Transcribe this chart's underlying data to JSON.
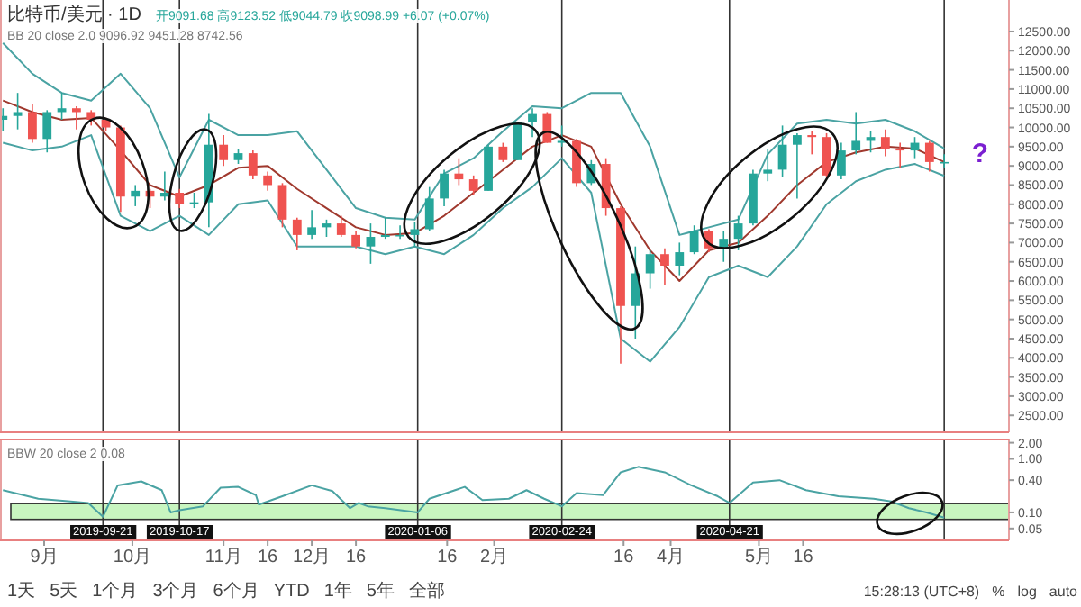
{
  "chart_data": [
    {
      "type": "candlestick",
      "title": "比特币/美元 · 1D",
      "x": [
        "2019-08-18",
        "2019-08-23",
        "2019-08-28",
        "2019-09-02",
        "2019-09-07",
        "2019-09-12",
        "2019-09-17",
        "2019-09-22",
        "2019-09-27",
        "2019-10-02",
        "2019-10-07",
        "2019-10-12",
        "2019-10-17",
        "2019-10-22",
        "2019-10-27",
        "2019-11-01",
        "2019-11-06",
        "2019-11-11",
        "2019-11-16",
        "2019-11-21",
        "2019-11-26",
        "2019-12-01",
        "2019-12-06",
        "2019-12-11",
        "2019-12-16",
        "2019-12-21",
        "2019-12-26",
        "2019-12-31",
        "2020-01-05",
        "2020-01-10",
        "2020-01-15",
        "2020-01-20",
        "2020-01-25",
        "2020-01-30",
        "2020-02-04",
        "2020-02-09",
        "2020-02-14",
        "2020-02-19",
        "2020-02-24",
        "2020-02-29",
        "2020-03-05",
        "2020-03-10",
        "2020-03-15",
        "2020-03-20",
        "2020-03-25",
        "2020-03-30",
        "2020-04-04",
        "2020-04-09",
        "2020-04-14",
        "2020-04-19",
        "2020-04-24",
        "2020-04-29",
        "2020-05-04",
        "2020-05-09",
        "2020-05-14",
        "2020-05-19",
        "2020-05-24",
        "2020-05-29",
        "2020-06-03",
        "2020-06-08",
        "2020-06-13",
        "2020-06-18",
        "2020-06-23",
        "2020-06-28",
        "2020-07-03"
      ],
      "ohlc": [
        [
          10200,
          10500,
          9900,
          10300
        ],
        [
          10300,
          10900,
          9950,
          10400
        ],
        [
          10400,
          10600,
          9600,
          9700
        ],
        [
          9700,
          10450,
          9350,
          10400
        ],
        [
          10400,
          10900,
          10200,
          10500
        ],
        [
          10500,
          10550,
          9950,
          10400
        ],
        [
          10400,
          10450,
          10050,
          10200
        ],
        [
          10200,
          10250,
          9900,
          10000
        ],
        [
          10000,
          10050,
          7800,
          8200
        ],
        [
          8200,
          8500,
          7950,
          8350
        ],
        [
          8350,
          8400,
          7900,
          8200
        ],
        [
          8200,
          8850,
          8100,
          8300
        ],
        [
          8300,
          8400,
          7900,
          8000
        ],
        [
          8000,
          8300,
          7900,
          8050
        ],
        [
          8050,
          10350,
          7400,
          9550
        ],
        [
          9550,
          9800,
          9000,
          9150
        ],
        [
          9150,
          9450,
          9050,
          9330
        ],
        [
          9330,
          9400,
          8650,
          8750
        ],
        [
          8750,
          8850,
          8350,
          8500
        ],
        [
          8500,
          8550,
          7400,
          7600
        ],
        [
          7600,
          7650,
          6800,
          7200
        ],
        [
          7200,
          7850,
          7100,
          7400
        ],
        [
          7400,
          7600,
          7150,
          7500
        ],
        [
          7500,
          7700,
          7150,
          7200
        ],
        [
          7200,
          7300,
          6850,
          6900
        ],
        [
          6900,
          7500,
          6450,
          7150
        ],
        [
          7150,
          7650,
          7100,
          7200
        ],
        [
          7200,
          7450,
          7100,
          7200
        ],
        [
          7200,
          7550,
          6900,
          7350
        ],
        [
          7350,
          8450,
          7300,
          8150
        ],
        [
          8150,
          8900,
          7950,
          8800
        ],
        [
          8800,
          9200,
          8500,
          8650
        ],
        [
          8650,
          8750,
          8250,
          8350
        ],
        [
          8350,
          9550,
          8350,
          9500
        ],
        [
          9500,
          9600,
          9100,
          9150
        ],
        [
          9150,
          10150,
          9150,
          10150
        ],
        [
          10150,
          10500,
          9750,
          10350
        ],
        [
          10350,
          10400,
          9600,
          9600
        ],
        [
          9600,
          10050,
          9500,
          9650
        ],
        [
          9650,
          9700,
          8450,
          8550
        ],
        [
          8550,
          9150,
          8500,
          9050
        ],
        [
          9050,
          9200,
          7700,
          7900
        ],
        [
          7900,
          7950,
          3850,
          5350
        ],
        [
          5350,
          6900,
          4500,
          6200
        ],
        [
          6200,
          6800,
          5800,
          6700
        ],
        [
          6700,
          6850,
          5900,
          6400
        ],
        [
          6400,
          7000,
          6150,
          6750
        ],
        [
          6750,
          7450,
          6700,
          7300
        ],
        [
          7300,
          7350,
          6750,
          6850
        ],
        [
          6850,
          7300,
          6500,
          7100
        ],
        [
          7100,
          7700,
          6800,
          7500
        ],
        [
          7500,
          8900,
          7450,
          8800
        ],
        [
          8800,
          9450,
          8600,
          8900
        ],
        [
          8900,
          10050,
          8700,
          9550
        ],
        [
          9550,
          9850,
          8150,
          9800
        ],
        [
          9800,
          9900,
          9300,
          9750
        ],
        [
          9750,
          9850,
          8700,
          8750
        ],
        [
          8750,
          9600,
          8650,
          9400
        ],
        [
          9400,
          10400,
          9300,
          9650
        ],
        [
          9650,
          9900,
          9350,
          9750
        ],
        [
          9750,
          9950,
          9250,
          9450
        ],
        [
          9450,
          9600,
          8950,
          9400
        ],
        [
          9400,
          9750,
          9200,
          9600
        ],
        [
          9600,
          9650,
          8850,
          9100
        ],
        [
          9100,
          9300,
          8950,
          9100
        ]
      ],
      "colors": [
        "#26a69a",
        "#26a69a",
        "#ef5350",
        "#26a69a",
        "#26a69a",
        "#ef5350",
        "#ef5350",
        "#ef5350",
        "#ef5350",
        "#26a69a",
        "#ef5350",
        "#26a69a",
        "#ef5350",
        "#26a69a",
        "#26a69a",
        "#ef5350",
        "#26a69a",
        "#ef5350",
        "#ef5350",
        "#ef5350",
        "#ef5350",
        "#26a69a",
        "#26a69a",
        "#ef5350",
        "#ef5350",
        "#26a69a",
        "#26a69a",
        "#26a69a",
        "#26a69a",
        "#26a69a",
        "#26a69a",
        "#ef5350",
        "#ef5350",
        "#26a69a",
        "#ef5350",
        "#26a69a",
        "#26a69a",
        "#ef5350",
        "#26a69a",
        "#ef5350",
        "#26a69a",
        "#ef5350",
        "#ef5350",
        "#26a69a",
        "#26a69a",
        "#ef5350",
        "#26a69a",
        "#26a69a",
        "#ef5350",
        "#26a69a",
        "#26a69a",
        "#26a69a",
        "#26a69a",
        "#26a69a",
        "#26a69a",
        "#ef5350",
        "#ef5350",
        "#26a69a",
        "#26a69a",
        "#26a69a",
        "#ef5350",
        "#ef5350",
        "#26a69a",
        "#ef5350",
        "#26a69a"
      ],
      "series": [
        {
          "type": "line",
          "color": "#4aa3a3",
          "x": [
            "2019-08-18",
            "2019-08-28",
            "2019-09-07",
            "2019-09-17",
            "2019-09-27",
            "2019-10-07",
            "2019-10-17",
            "2019-10-27",
            "2019-11-06",
            "2019-11-16",
            "2019-11-26",
            "2019-12-06",
            "2019-12-16",
            "2019-12-26",
            "2020-01-05",
            "2020-01-15",
            "2020-01-25",
            "2020-02-04",
            "2020-02-14",
            "2020-02-24",
            "2020-03-05",
            "2020-03-15",
            "2020-03-25",
            "2020-04-04",
            "2020-04-14",
            "2020-04-24",
            "2020-05-04",
            "2020-05-14",
            "2020-05-24",
            "2020-06-03",
            "2020-06-13",
            "2020-06-23",
            "2020-07-03"
          ],
          "values": [
            12200,
            11400,
            10900,
            10700,
            11400,
            10500,
            8700,
            10200,
            9800,
            9800,
            9900,
            8900,
            7900,
            7650,
            7600,
            8800,
            9200,
            9900,
            10550,
            10500,
            10900,
            10900,
            9500,
            7200,
            7400,
            7600,
            9300,
            10100,
            10200,
            10100,
            10200,
            9900,
            9450
          ]
        },
        {
          "type": "line",
          "color": "#a0392e",
          "x": [
            "2019-08-18",
            "2019-08-28",
            "2019-09-07",
            "2019-09-17",
            "2019-09-27",
            "2019-10-07",
            "2019-10-17",
            "2019-10-27",
            "2019-11-06",
            "2019-11-16",
            "2019-11-26",
            "2019-12-06",
            "2019-12-16",
            "2019-12-26",
            "2020-01-05",
            "2020-01-15",
            "2020-01-25",
            "2020-02-04",
            "2020-02-14",
            "2020-02-24",
            "2020-03-05",
            "2020-03-15",
            "2020-03-25",
            "2020-04-04",
            "2020-04-14",
            "2020-04-24",
            "2020-05-04",
            "2020-05-14",
            "2020-05-24",
            "2020-06-03",
            "2020-06-13",
            "2020-06-23",
            "2020-07-03"
          ],
          "values": [
            10700,
            10400,
            10200,
            10250,
            9400,
            8500,
            8200,
            8500,
            8950,
            9000,
            8400,
            7900,
            7400,
            7200,
            7250,
            7700,
            8300,
            8900,
            9500,
            9800,
            9500,
            8000,
            6800,
            6000,
            6800,
            7000,
            7700,
            8500,
            9100,
            9350,
            9500,
            9450,
            9100
          ]
        },
        {
          "type": "line",
          "color": "#4aa3a3",
          "x": [
            "2019-08-18",
            "2019-08-28",
            "2019-09-07",
            "2019-09-17",
            "2019-09-27",
            "2019-10-07",
            "2019-10-17",
            "2019-10-27",
            "2019-11-06",
            "2019-11-16",
            "2019-11-26",
            "2019-12-06",
            "2019-12-16",
            "2019-12-26",
            "2020-01-05",
            "2020-01-15",
            "2020-01-25",
            "2020-02-04",
            "2020-02-14",
            "2020-02-24",
            "2020-03-05",
            "2020-03-15",
            "2020-03-25",
            "2020-04-04",
            "2020-04-14",
            "2020-04-24",
            "2020-05-04",
            "2020-05-14",
            "2020-05-24",
            "2020-06-03",
            "2020-06-13",
            "2020-06-23",
            "2020-07-03"
          ],
          "values": [
            9600,
            9400,
            9500,
            9800,
            7700,
            7300,
            7700,
            7200,
            8000,
            8100,
            6900,
            6900,
            6900,
            6700,
            6900,
            6700,
            7200,
            7900,
            8450,
            9200,
            8300,
            4500,
            3900,
            4800,
            6100,
            6400,
            6100,
            6900,
            8000,
            8600,
            8900,
            9050,
            8740
          ]
        }
      ],
      "xlim": [
        "2019-08-17",
        "2020-07-25"
      ],
      "ylim": [
        2060,
        13320
      ],
      "yticks": [
        {
          "value": 2500,
          "label": "2500.00"
        },
        {
          "value": 3000,
          "label": "3000.00"
        },
        {
          "value": 3500,
          "label": "3500.00"
        },
        {
          "value": 4000,
          "label": "4000.00"
        },
        {
          "value": 4500,
          "label": "4500.00"
        },
        {
          "value": 5000,
          "label": "5000.00"
        },
        {
          "value": 5500,
          "label": "5500.00"
        },
        {
          "value": 6000,
          "label": "6000.00"
        },
        {
          "value": 6500,
          "label": "6500.00"
        },
        {
          "value": 7000,
          "label": "7000.00"
        },
        {
          "value": 7500,
          "label": "7500.00"
        },
        {
          "value": 8000,
          "label": "8000.00"
        },
        {
          "value": 8500,
          "label": "8500.00"
        },
        {
          "value": 9000,
          "label": "9000.00"
        },
        {
          "value": 9500,
          "label": "9500.00"
        },
        {
          "value": 10000,
          "label": "10000.00"
        },
        {
          "value": 10500,
          "label": "10500.00"
        },
        {
          "value": 11000,
          "label": "11000.00"
        },
        {
          "value": 11500,
          "label": "11500.00"
        },
        {
          "value": 12000,
          "label": "12000.00"
        },
        {
          "value": 12500,
          "label": "12500.00"
        }
      ],
      "tick_labels": "y",
      "ref_lines": [
        {
          "axis": "x",
          "value": "2019-09-21",
          "color": "#333333"
        },
        {
          "axis": "x",
          "value": "2019-10-17",
          "color": "#333333"
        },
        {
          "axis": "x",
          "value": "2020-01-06",
          "color": "#333333"
        },
        {
          "axis": "x",
          "value": "2020-02-24",
          "color": "#333333"
        },
        {
          "axis": "x",
          "value": "2020-04-21",
          "color": "#333333"
        },
        {
          "axis": "x",
          "value": "2020-07-03",
          "color": "#333333"
        }
      ],
      "annotations": [
        "开9091.68 高9123.52 低9044.79 收9098.99 +6.07 (+0.07%)",
        "BB 20 close 2.0  9096.92  9451.28  8742.56",
        "?"
      ]
    },
    {
      "type": "line",
      "title": "BBW 20 close 2  0.08",
      "series": [
        {
          "color": "#4aa3a3",
          "x": [
            "2019-08-18",
            "2019-08-30",
            "2019-09-10",
            "2019-09-16",
            "2019-09-21",
            "2019-09-26",
            "2019-10-04",
            "2019-10-11",
            "2019-10-14",
            "2019-10-17",
            "2019-10-25",
            "2019-10-31",
            "2019-11-06",
            "2019-11-12",
            "2019-11-13",
            "2019-11-21",
            "2019-12-01",
            "2019-12-08",
            "2019-12-14",
            "2019-12-17",
            "2019-12-20",
            "2019-12-26",
            "2020-01-06",
            "2020-01-10",
            "2020-01-22",
            "2020-01-28",
            "2020-02-06",
            "2020-02-12",
            "2020-02-18",
            "2020-02-24",
            "2020-02-29",
            "2020-03-09",
            "2020-03-15",
            "2020-03-21",
            "2020-03-30",
            "2020-04-08",
            "2020-04-17",
            "2020-04-21",
            "2020-04-29",
            "2020-05-08",
            "2020-05-17",
            "2020-05-28",
            "2020-06-09",
            "2020-06-15",
            "2020-06-21",
            "2020-06-27",
            "2020-07-03"
          ],
          "values": [
            0.26,
            0.18,
            0.16,
            0.15,
            0.083,
            0.32,
            0.38,
            0.26,
            0.1,
            0.11,
            0.13,
            0.29,
            0.3,
            0.21,
            0.14,
            0.2,
            0.32,
            0.25,
            0.12,
            0.15,
            0.13,
            0.12,
            0.1,
            0.18,
            0.3,
            0.17,
            0.18,
            0.26,
            0.18,
            0.13,
            0.23,
            0.21,
            0.56,
            0.71,
            0.56,
            0.32,
            0.2,
            0.15,
            0.36,
            0.4,
            0.26,
            0.2,
            0.18,
            0.16,
            0.12,
            0.1,
            0.08
          ]
        }
      ],
      "log": true,
      "xlim": [
        "2019-08-17",
        "2020-07-25"
      ],
      "ylim": [
        0.03,
        2.3
      ],
      "yticks": [
        {
          "value": 2,
          "label": "2.00"
        },
        {
          "value": 1,
          "label": "1.00"
        },
        {
          "value": 0.4,
          "label": "0.40"
        },
        {
          "value": 0.1,
          "label": "0.10"
        },
        {
          "value": 0.05,
          "label": "0.05"
        }
      ],
      "xticks": [
        {
          "value": "2019-09-01",
          "label": "9月"
        },
        {
          "value": "2019-10-01",
          "label": "10月"
        },
        {
          "value": "2019-11-01",
          "label": "11月"
        },
        {
          "value": "2019-11-16",
          "label": "16"
        },
        {
          "value": "2019-12-01",
          "label": "12月"
        },
        {
          "value": "2019-12-16",
          "label": "16"
        },
        {
          "value": "2020-01-16",
          "label": "16"
        },
        {
          "value": "2020-02-01",
          "label": "2月"
        },
        {
          "value": "2020-03-16",
          "label": "16"
        },
        {
          "value": "2020-04-01",
          "label": "4月"
        },
        {
          "value": "2020-05-01",
          "label": "5月"
        },
        {
          "value": "2020-05-16",
          "label": "16"
        }
      ],
      "bands": [
        {
          "axis": "y",
          "from": 0.074,
          "to": 0.146,
          "color": "#c8f5c0"
        }
      ],
      "ref_lines": [
        {
          "axis": "x",
          "value": "2019-09-21",
          "label": "2019-09-21",
          "color": "#333333"
        },
        {
          "axis": "x",
          "value": "2019-10-17",
          "label": "2019-10-17",
          "color": "#333333"
        },
        {
          "axis": "x",
          "value": "2020-01-06",
          "label": "2020-01-06",
          "color": "#333333"
        },
        {
          "axis": "x",
          "value": "2020-02-24",
          "label": "2020-02-24",
          "color": "#333333"
        },
        {
          "axis": "x",
          "value": "2020-04-21",
          "label": "2020-04-21",
          "color": "#333333"
        },
        {
          "axis": "x",
          "value": "2020-07-03",
          "color": "#333333"
        }
      ],
      "annotations": [
        "1天",
        "5天",
        "1个月",
        "3个月",
        "6个月",
        "YTD",
        "1年",
        "5年",
        "全部",
        "15:28:13 (UTC+8)",
        "%",
        "log",
        "auto"
      ]
    }
  ]
}
